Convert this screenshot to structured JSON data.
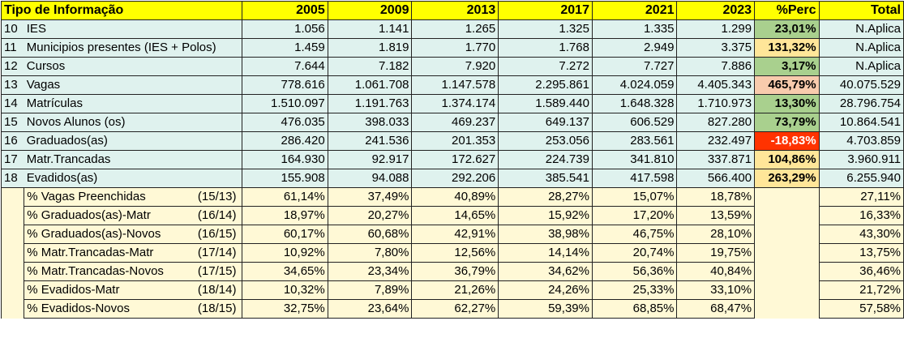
{
  "header": [
    "Tipo de Informação",
    "2005",
    "2009",
    "2013",
    "2017",
    "2021",
    "2023",
    "%Perc",
    "Total"
  ],
  "colors": {
    "header_bg": "#ffff00",
    "data_row_bg": "#dff2ee",
    "ratio_row_bg": "#fff9d6",
    "perc_green": "#a9d08e",
    "perc_yellow": "#ffe699",
    "perc_pink": "#f8cbad",
    "perc_red": "#ff3300"
  },
  "data_rows": [
    {
      "idx": "10",
      "label": "IES",
      "values": [
        "1.056",
        "1.141",
        "1.265",
        "1.325",
        "1.335",
        "1.299"
      ],
      "perc": "23,01%",
      "perc_color": "#a9d08e",
      "perc_text_color": "#000000",
      "total": "N.Aplica"
    },
    {
      "idx": "11",
      "label": "Municipios presentes (IES + Polos)",
      "values": [
        "1.459",
        "1.819",
        "1.770",
        "1.768",
        "2.949",
        "3.375"
      ],
      "perc": "131,32%",
      "perc_color": "#ffe699",
      "perc_text_color": "#000000",
      "total": "N.Aplica"
    },
    {
      "idx": "12",
      "label": "Cursos",
      "values": [
        "7.644",
        "7.182",
        "7.920",
        "7.272",
        "7.727",
        "7.886"
      ],
      "perc": "3,17%",
      "perc_color": "#a9d08e",
      "perc_text_color": "#000000",
      "total": "N.Aplica"
    },
    {
      "idx": "13",
      "label": "Vagas",
      "values": [
        "778.616",
        "1.061.708",
        "1.147.578",
        "2.295.861",
        "4.024.059",
        "4.405.343"
      ],
      "perc": "465,79%",
      "perc_color": "#f8cbad",
      "perc_text_color": "#000000",
      "total": "40.075.529"
    },
    {
      "idx": "14",
      "label": "Matrículas",
      "values": [
        "1.510.097",
        "1.191.763",
        "1.374.174",
        "1.589.440",
        "1.648.328",
        "1.710.973"
      ],
      "perc": "13,30%",
      "perc_color": "#a9d08e",
      "perc_text_color": "#000000",
      "total": "28.796.754"
    },
    {
      "idx": "15",
      "label": "Novos Alunos (os)",
      "values": [
        "476.035",
        "398.033",
        "469.237",
        "649.137",
        "606.529",
        "827.280"
      ],
      "perc": "73,79%",
      "perc_color": "#a9d08e",
      "perc_text_color": "#000000",
      "total": "10.864.541"
    },
    {
      "idx": "16",
      "label": "Graduados(as)",
      "values": [
        "286.420",
        "241.536",
        "201.353",
        "253.056",
        "283.561",
        "232.497"
      ],
      "perc": "-18,83%",
      "perc_color": "#ff3300",
      "perc_text_color": "#ffffff",
      "total": "4.703.859"
    },
    {
      "idx": "17",
      "label": "Matr.Trancadas",
      "values": [
        "164.930",
        "92.917",
        "172.627",
        "224.739",
        "341.810",
        "337.871"
      ],
      "perc": "104,86%",
      "perc_color": "#ffe699",
      "perc_text_color": "#000000",
      "total": "3.960.911"
    },
    {
      "idx": "18",
      "label": "Evadidos(as)",
      "values": [
        "155.908",
        "94.088",
        "292.206",
        "385.541",
        "417.598",
        "566.400"
      ],
      "perc": "263,29%",
      "perc_color": "#ffe699",
      "perc_text_color": "#000000",
      "total": "6.255.940"
    }
  ],
  "ratio_rows": [
    {
      "label": "% Vagas Preenchidas",
      "ref": "(15/13)",
      "values": [
        "61,14%",
        "37,49%",
        "40,89%",
        "28,27%",
        "15,07%",
        "18,78%"
      ],
      "total": "27,11%"
    },
    {
      "label": "% Graduados(as)-Matr",
      "ref": "(16/14)",
      "values": [
        "18,97%",
        "20,27%",
        "14,65%",
        "15,92%",
        "17,20%",
        "13,59%"
      ],
      "total": "16,33%"
    },
    {
      "label": "% Graduados(as)-Novos",
      "ref": "(16/15)",
      "values": [
        "60,17%",
        "60,68%",
        "42,91%",
        "38,98%",
        "46,75%",
        "28,10%"
      ],
      "total": "43,30%"
    },
    {
      "label": "% Matr.Trancadas-Matr",
      "ref": "(17/14)",
      "values": [
        "10,92%",
        "7,80%",
        "12,56%",
        "14,14%",
        "20,74%",
        "19,75%"
      ],
      "total": "13,75%"
    },
    {
      "label": "% Matr.Trancadas-Novos",
      "ref": "(17/15)",
      "values": [
        "34,65%",
        "23,34%",
        "36,79%",
        "34,62%",
        "56,36%",
        "40,84%"
      ],
      "total": "36,46%"
    },
    {
      "label": "% Evadidos-Matr",
      "ref": "(18/14)",
      "values": [
        "10,32%",
        "7,89%",
        "21,26%",
        "24,26%",
        "25,33%",
        "33,10%"
      ],
      "total": "21,72%"
    },
    {
      "label": "% Evadidos-Novos",
      "ref": "(18/15)",
      "values": [
        "32,75%",
        "23,64%",
        "62,27%",
        "59,39%",
        "68,85%",
        "68,47%"
      ],
      "total": "57,58%"
    }
  ]
}
